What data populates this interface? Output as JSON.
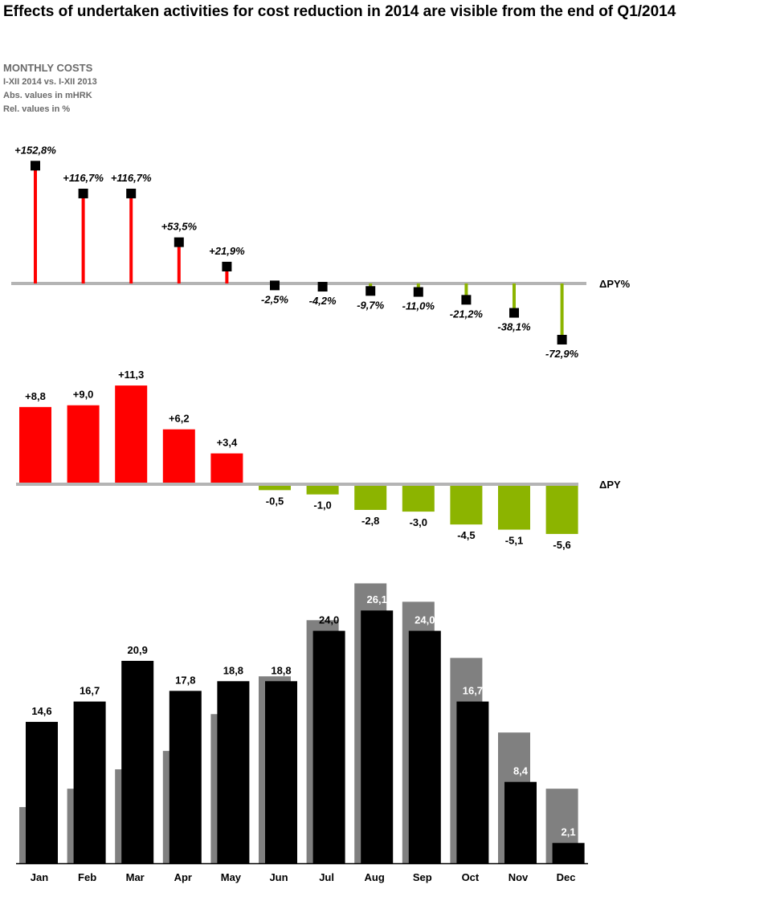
{
  "title": "Effects of undertaken activities for cost reduction in 2014 are visible from the end of Q1/2014",
  "subtitle": {
    "heading": "MONTHLY COSTS",
    "period": "I-XII 2014 vs. I-XII 2013",
    "abs_note": "Abs. values in mHRK",
    "rel_note": "Rel. values in %"
  },
  "colors": {
    "positive": "#ff0000",
    "negative": "#8cb400",
    "baseline": "#b4b4b4",
    "ac": "#000000",
    "py": "#808080"
  },
  "chart_data": [
    {
      "type": "lollipop",
      "series_label": "ΔPY%",
      "categories": [
        "Jan",
        "Feb",
        "Mar",
        "Apr",
        "May",
        "Jun",
        "Jul",
        "Aug",
        "Sep",
        "Oct",
        "Nov",
        "Dec"
      ],
      "values": [
        152.8,
        116.7,
        116.7,
        53.5,
        21.9,
        -2.5,
        -4.2,
        -9.7,
        -11.0,
        -21.2,
        -38.1,
        -72.9
      ],
      "labels": [
        "+152,8%",
        "+116,7%",
        "+116,7%",
        "+53,5%",
        "+21,9%",
        "-2,5%",
        "-4,2%",
        "-9,7%",
        "-11,0%",
        "-21,2%",
        "-38,1%",
        "-72,9%"
      ]
    },
    {
      "type": "bar",
      "series_label": "ΔPY",
      "categories": [
        "Jan",
        "Feb",
        "Mar",
        "Apr",
        "May",
        "Jun",
        "Jul",
        "Aug",
        "Sep",
        "Oct",
        "Nov",
        "Dec"
      ],
      "values": [
        8.8,
        9.0,
        11.3,
        6.2,
        3.4,
        -0.5,
        -1.0,
        -2.8,
        -3.0,
        -4.5,
        -5.1,
        -5.6
      ],
      "labels": [
        "+8,8",
        "+9,0",
        "+11,3",
        "+6,2",
        "+3,4",
        "-0,5",
        "-1,0",
        "-2,8",
        "-3,0",
        "-4,5",
        "-5,1",
        "-5,6"
      ]
    },
    {
      "type": "bar",
      "categories": [
        "Jan",
        "Feb",
        "Mar",
        "Apr",
        "May",
        "Jun",
        "Jul",
        "Aug",
        "Sep",
        "Oct",
        "Nov",
        "Dec"
      ],
      "series": [
        {
          "values": [
            5.8,
            7.7,
            9.7,
            11.6,
            15.4,
            19.3,
            25.1,
            28.9,
            27.0,
            21.2,
            13.5,
            7.7
          ]
        },
        {
          "values": [
            14.6,
            16.7,
            20.9,
            17.8,
            18.8,
            18.8,
            24.0,
            26.1,
            24.0,
            16.7,
            8.4,
            2.1
          ],
          "labels": [
            "14,6",
            "16,7",
            "20,9",
            "17,8",
            "18,8",
            "18,8",
            "24,0",
            "26,1",
            "24,0",
            "16,7",
            "8,4",
            "2,1"
          ]
        }
      ]
    }
  ]
}
